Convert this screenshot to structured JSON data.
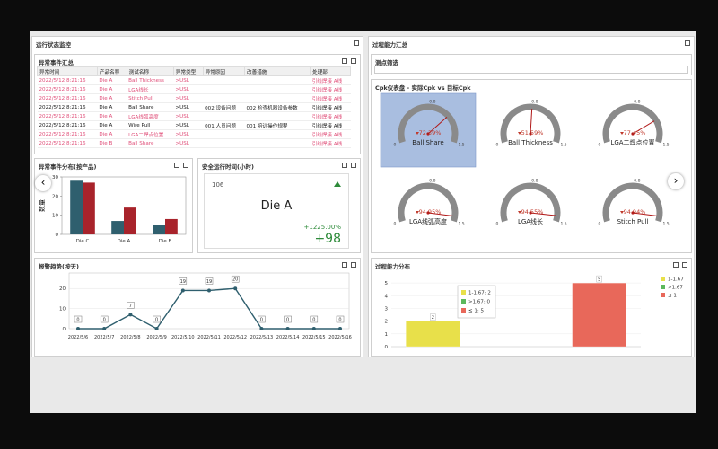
{
  "left_panel": {
    "title": "运行状态监控"
  },
  "exception_table": {
    "title": "异常事件汇总",
    "columns": [
      "异常时间",
      "产品名称",
      "测试名称",
      "异常类型",
      "异常原因",
      "改善措施",
      "处理部"
    ],
    "rows": [
      [
        "2022/5/12 8:21:16",
        "Die A",
        "Ball Thickness",
        ">USL",
        null,
        null,
        "引线焊接 A线"
      ],
      [
        "2022/5/12 8:21:16",
        "Die A",
        "LGA线长",
        ">USL",
        null,
        null,
        "引线焊接 A线"
      ],
      [
        "2022/5/12 8:21:16",
        "Die A",
        "Stitch Pull",
        ">USL",
        null,
        null,
        "引线焊接 A线"
      ],
      [
        "2022/5/12 8:21:16",
        "Die A",
        "Ball Share",
        ">USL",
        "002 设备问题",
        "002 检查机器设备参数",
        "引线焊接 A线"
      ],
      [
        "2022/5/12 8:21:16",
        "Die A",
        "LGA线弧高度",
        ">USL",
        null,
        null,
        "引线焊接 A线"
      ],
      [
        "2022/5/12 8:21:16",
        "Die A",
        "Wire Pull",
        ">USL",
        "001 人员问题",
        "001 培训操作规程",
        "引线焊接 A线"
      ],
      [
        "2022/5/12 8:21:16",
        "Die A",
        "LGA二焊点位置",
        ">USL",
        null,
        null,
        "引线焊接 A线"
      ],
      [
        "2022/5/12 8:21:16",
        "Die B",
        "Ball Share",
        ">USL",
        null,
        null,
        "引线焊接 A线"
      ]
    ],
    "alert_rows": [
      true,
      true,
      true,
      false,
      true,
      false,
      true,
      true
    ],
    "alert_color": "#e0507a"
  },
  "product_chart": {
    "type": "bar",
    "title": "异常事件分布(按产品)",
    "y_label": "数量",
    "categories": [
      "Die C",
      "Die A",
      "Die B"
    ],
    "series": [
      {
        "color": "#2f5f6e",
        "values": [
          28,
          7,
          5
        ]
      },
      {
        "color": "#a8232b",
        "values": [
          27,
          14,
          8
        ]
      }
    ],
    "ylim": [
      0,
      30
    ],
    "yticks": [
      0,
      10,
      20,
      30
    ]
  },
  "uptime": {
    "title": "安全运行时间(小时)",
    "value": 106,
    "product": "Die A",
    "change": "+1225.00%",
    "delta": "+98"
  },
  "trend_chart": {
    "type": "line",
    "title": "报警趋势(按天)",
    "x": [
      "2022/5/6",
      "2022/5/7",
      "2022/5/8",
      "2022/5/9",
      "2022/5/10",
      "2022/5/11",
      "2022/5/12",
      "2022/5/13",
      "2022/5/14",
      "2022/5/15",
      "2022/5/16"
    ],
    "values": [
      0,
      0,
      7,
      0,
      19,
      19,
      20,
      0,
      0,
      0,
      0
    ],
    "color": "#2f5f6e",
    "ylim": [
      0,
      25
    ],
    "yticks": [
      0,
      10,
      20
    ],
    "grid": true
  },
  "right_panel": {
    "title": "过程能力汇总",
    "filter_label": "测点筛选",
    "gauge_title": "Cpk仪表盘 - 实际Cpk vs 目标Cpk"
  },
  "gauges": {
    "type": "gauge",
    "names": [
      "Ball Share",
      "Ball Thickness",
      "LGA二焊点位置",
      "LGA线弧高度",
      "LGA线长",
      "Stitch Pull"
    ],
    "values": [
      72.39,
      51.59,
      77.45,
      94.95,
      94.55,
      94.94
    ],
    "value_labels": [
      "72.39%",
      "51.59%",
      "77.45%",
      "94.95%",
      "94.55%",
      "94.94%"
    ],
    "scale_ticks": [
      0,
      0.8,
      1.5
    ],
    "highlight": 0
  },
  "distribution_chart": {
    "type": "bar",
    "title": "过程能力分布",
    "series": [
      {
        "name": "1-1.67",
        "color": "#e8e04a",
        "values": [
          2
        ]
      },
      {
        "name": ">1.67",
        "color": "#5cb85c",
        "values": [
          0
        ]
      },
      {
        "name": "≤ 1",
        "color": "#e8685a",
        "values": [
          5
        ]
      }
    ],
    "ylim": [
      0,
      5.5
    ],
    "yticks": [
      0,
      1,
      2,
      3,
      4,
      5
    ],
    "legend": "right",
    "tooltip": [
      "1-1.67: 2",
      ">1.67: 0",
      "≤ 1: 5"
    ]
  }
}
